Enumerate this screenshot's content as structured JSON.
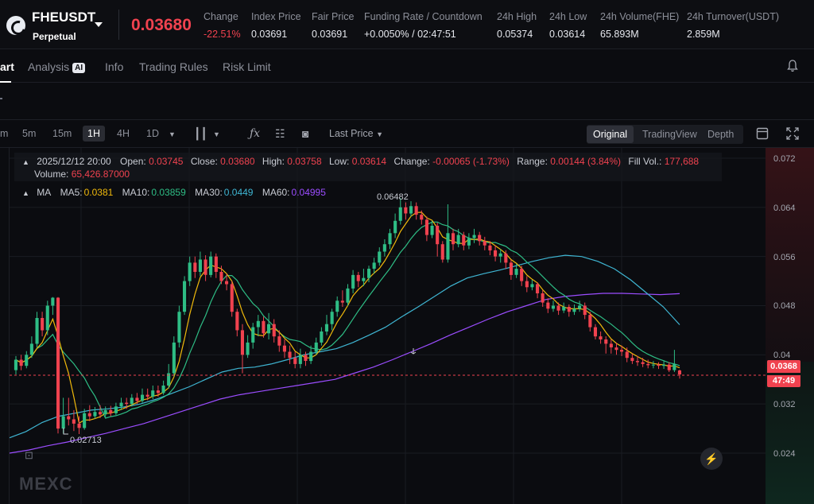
{
  "header": {
    "symbol": "FHEUSDT",
    "contract_type": "Perpetual",
    "last_price": "0.03680",
    "stats": [
      {
        "label": "Change",
        "value": "-22.51%",
        "negative": true
      },
      {
        "label": "Index Price",
        "value": "0.03691"
      },
      {
        "label": "Fair Price",
        "value": "0.03691"
      },
      {
        "label": "Funding Rate / Countdown",
        "value": "+0.0050% / 02:47:51"
      },
      {
        "label": "24h High",
        "value": "0.05374"
      },
      {
        "label": "24h Low",
        "value": "0.03614"
      },
      {
        "label": "24h Volume(FHE)",
        "value": "65.893M"
      },
      {
        "label": "24h Turnover(USDT)",
        "value": "2.859M"
      }
    ]
  },
  "tabs": [
    "art",
    "Analysis",
    "Info",
    "Trading Rules",
    "Risk Limit"
  ],
  "ai_badge": "AI",
  "toolbar": {
    "timeframes": [
      "m",
      "5m",
      "15m",
      "1H",
      "4H",
      "1D"
    ],
    "active_timeframe": "1H",
    "price_type": "Last Price",
    "views": [
      "Original",
      "TradingView",
      "Depth"
    ],
    "active_view": "Original"
  },
  "ohlc": {
    "time": "2025/12/12 20:00",
    "open_label": "Open:",
    "open": "0.03745",
    "close_label": "Close:",
    "close": "0.03680",
    "high_label": "High:",
    "high": "0.03758",
    "low_label": "Low:",
    "low": "0.03614",
    "change_label": "Change:",
    "change": "-0.00065 (-1.73%)",
    "range_label": "Range:",
    "range": "0.00144 (3.84%)",
    "fill_label": "Fill Vol.:",
    "fill": "177,688",
    "volume_label": "Volume:",
    "volume": "65,426.87000"
  },
  "ma": {
    "label": "MA",
    "items": [
      {
        "name": "MA5:",
        "value": "0.0381",
        "color": "#f0b90b"
      },
      {
        "name": "MA10:",
        "value": "0.03859",
        "color": "#2ebd85"
      },
      {
        "name": "MA30:",
        "value": "0.0449",
        "color": "#3fb6d3"
      },
      {
        "name": "MA60:",
        "value": "0.04995",
        "color": "#9b4dff"
      }
    ]
  },
  "chart_data": {
    "type": "candlestick",
    "price_axis": [
      "0.072",
      "0.064",
      "0.056",
      "0.048",
      "0.04",
      "0.032",
      "0.024"
    ],
    "ylim": [
      0.0205,
      0.0735
    ],
    "highest_label": "0.06482",
    "lowest_label": "0.02713",
    "current_price": "0.0368",
    "countdown": "47:49",
    "candles": [
      [
        0.0375,
        0.0392,
        0.0398,
        0.0368
      ],
      [
        0.0392,
        0.0382,
        0.04,
        0.0375
      ],
      [
        0.0382,
        0.04,
        0.0406,
        0.0378
      ],
      [
        0.04,
        0.0418,
        0.043,
        0.0395
      ],
      [
        0.0418,
        0.046,
        0.047,
        0.0412
      ],
      [
        0.046,
        0.044,
        0.047,
        0.043
      ],
      [
        0.044,
        0.048,
        0.0488,
        0.0432
      ],
      [
        0.048,
        0.0493,
        0.0494,
        0.0465
      ],
      [
        0.0493,
        0.028,
        0.0494,
        0.0272
      ],
      [
        0.028,
        0.03,
        0.033,
        0.0272
      ],
      [
        0.03,
        0.0295,
        0.033,
        0.0285
      ],
      [
        0.0295,
        0.0288,
        0.031,
        0.0276
      ],
      [
        0.0288,
        0.0281,
        0.03,
        0.0271
      ],
      [
        0.0281,
        0.0305,
        0.0312,
        0.0278
      ],
      [
        0.0305,
        0.03,
        0.0318,
        0.0292
      ],
      [
        0.03,
        0.0307,
        0.0315,
        0.0296
      ],
      [
        0.0307,
        0.0303,
        0.0318,
        0.0297
      ],
      [
        0.0303,
        0.031,
        0.0316,
        0.0299
      ],
      [
        0.031,
        0.0305,
        0.0317,
        0.03
      ],
      [
        0.0305,
        0.0316,
        0.0322,
        0.0302
      ],
      [
        0.0316,
        0.0322,
        0.033,
        0.031
      ],
      [
        0.0322,
        0.032,
        0.033,
        0.0312
      ],
      [
        0.032,
        0.033,
        0.0336,
        0.0316
      ],
      [
        0.033,
        0.0325,
        0.0338,
        0.032
      ],
      [
        0.0325,
        0.0335,
        0.0345,
        0.0322
      ],
      [
        0.0335,
        0.0332,
        0.0345,
        0.0326
      ],
      [
        0.0332,
        0.0342,
        0.035,
        0.0328
      ],
      [
        0.0342,
        0.0338,
        0.035,
        0.0332
      ],
      [
        0.0338,
        0.035,
        0.0358,
        0.0335
      ],
      [
        0.035,
        0.037,
        0.0385,
        0.0345
      ],
      [
        0.037,
        0.042,
        0.043,
        0.0365
      ],
      [
        0.042,
        0.047,
        0.048,
        0.0412
      ],
      [
        0.047,
        0.052,
        0.0528,
        0.0465
      ],
      [
        0.052,
        0.055,
        0.056,
        0.0512
      ],
      [
        0.055,
        0.0535,
        0.056,
        0.0525
      ],
      [
        0.0535,
        0.0555,
        0.0568,
        0.0528
      ],
      [
        0.0555,
        0.053,
        0.0562,
        0.052
      ],
      [
        0.053,
        0.056,
        0.0568,
        0.0526
      ],
      [
        0.056,
        0.0535,
        0.0565,
        0.0525
      ],
      [
        0.0535,
        0.052,
        0.0545,
        0.0515
      ],
      [
        0.052,
        0.0515,
        0.0532,
        0.0505
      ],
      [
        0.0515,
        0.047,
        0.052,
        0.0462
      ],
      [
        0.047,
        0.044,
        0.0475,
        0.043
      ],
      [
        0.044,
        0.04,
        0.045,
        0.037
      ],
      [
        0.04,
        0.042,
        0.0432,
        0.0395
      ],
      [
        0.042,
        0.0445,
        0.0452,
        0.041
      ],
      [
        0.0445,
        0.0455,
        0.0465,
        0.043
      ],
      [
        0.0455,
        0.0435,
        0.0462,
        0.0428
      ],
      [
        0.0435,
        0.045,
        0.0468,
        0.0425
      ],
      [
        0.045,
        0.043,
        0.0458,
        0.042
      ],
      [
        0.043,
        0.0415,
        0.044,
        0.0405
      ],
      [
        0.0415,
        0.0405,
        0.0425,
        0.0395
      ],
      [
        0.0405,
        0.0395,
        0.0415,
        0.0385
      ],
      [
        0.0395,
        0.0385,
        0.0405,
        0.0378
      ],
      [
        0.0385,
        0.04,
        0.041,
        0.0378
      ],
      [
        0.04,
        0.039,
        0.0405,
        0.0382
      ],
      [
        0.039,
        0.0405,
        0.0415,
        0.0385
      ],
      [
        0.0405,
        0.042,
        0.0428,
        0.04
      ],
      [
        0.042,
        0.0438,
        0.0445,
        0.0415
      ],
      [
        0.0438,
        0.045,
        0.0465,
        0.0432
      ],
      [
        0.045,
        0.047,
        0.0475,
        0.044
      ],
      [
        0.047,
        0.0488,
        0.0495,
        0.0462
      ],
      [
        0.0488,
        0.0485,
        0.0505,
        0.0478
      ],
      [
        0.0485,
        0.0508,
        0.0515,
        0.048
      ],
      [
        0.0508,
        0.053,
        0.0538,
        0.05
      ],
      [
        0.053,
        0.052,
        0.0535,
        0.051
      ],
      [
        0.052,
        0.0525,
        0.054,
        0.0512
      ],
      [
        0.0525,
        0.054,
        0.0545,
        0.0518
      ],
      [
        0.054,
        0.055,
        0.0558,
        0.0532
      ],
      [
        0.055,
        0.0568,
        0.0575,
        0.0545
      ],
      [
        0.0568,
        0.058,
        0.0588,
        0.056
      ],
      [
        0.058,
        0.0598,
        0.0605,
        0.0572
      ],
      [
        0.0598,
        0.0618,
        0.063,
        0.059
      ],
      [
        0.0618,
        0.064,
        0.0655,
        0.0612
      ],
      [
        0.064,
        0.063,
        0.0648,
        0.062
      ],
      [
        0.063,
        0.0642,
        0.065,
        0.0625
      ],
      [
        0.0642,
        0.0628,
        0.0648,
        0.062
      ],
      [
        0.0628,
        0.062,
        0.0635,
        0.0612
      ],
      [
        0.062,
        0.0595,
        0.0625,
        0.0585
      ],
      [
        0.0595,
        0.061,
        0.0618,
        0.059
      ],
      [
        0.061,
        0.058,
        0.0615,
        0.056
      ],
      [
        0.058,
        0.0555,
        0.0585,
        0.055
      ],
      [
        0.0555,
        0.0598,
        0.0645,
        0.055
      ],
      [
        0.0598,
        0.058,
        0.0605,
        0.057
      ],
      [
        0.058,
        0.0595,
        0.0605,
        0.0575
      ],
      [
        0.0595,
        0.0578,
        0.06,
        0.057
      ],
      [
        0.0578,
        0.059,
        0.0598,
        0.0572
      ],
      [
        0.059,
        0.0595,
        0.0605,
        0.0582
      ],
      [
        0.0595,
        0.0585,
        0.06,
        0.0578
      ],
      [
        0.0585,
        0.0578,
        0.0592,
        0.057
      ],
      [
        0.0578,
        0.057,
        0.0585,
        0.0562
      ],
      [
        0.057,
        0.056,
        0.0578,
        0.0552
      ],
      [
        0.056,
        0.0565,
        0.0572,
        0.055
      ],
      [
        0.0565,
        0.055,
        0.057,
        0.054
      ],
      [
        0.055,
        0.053,
        0.0555,
        0.0522
      ],
      [
        0.053,
        0.054,
        0.0548,
        0.0525
      ],
      [
        0.054,
        0.052,
        0.0545,
        0.0512
      ],
      [
        0.052,
        0.051,
        0.0528,
        0.0502
      ],
      [
        0.051,
        0.0515,
        0.0522,
        0.0505
      ],
      [
        0.0515,
        0.05,
        0.0518,
        0.0492
      ],
      [
        0.05,
        0.0485,
        0.0505,
        0.0478
      ],
      [
        0.0485,
        0.0475,
        0.0492,
        0.0468
      ],
      [
        0.0475,
        0.048,
        0.0488,
        0.047
      ],
      [
        0.048,
        0.0472,
        0.0485,
        0.0465
      ],
      [
        0.0472,
        0.0478,
        0.0485,
        0.0468
      ],
      [
        0.0478,
        0.047,
        0.0482,
        0.0462
      ],
      [
        0.047,
        0.0475,
        0.0482,
        0.0465
      ],
      [
        0.0475,
        0.048,
        0.0488,
        0.047
      ],
      [
        0.048,
        0.0465,
        0.0485,
        0.0458
      ],
      [
        0.0465,
        0.0445,
        0.047,
        0.0438
      ],
      [
        0.0445,
        0.043,
        0.045,
        0.0425
      ],
      [
        0.043,
        0.0425,
        0.0438,
        0.0418
      ],
      [
        0.0425,
        0.0418,
        0.043,
        0.0402
      ],
      [
        0.0418,
        0.0412,
        0.0425,
        0.0402
      ],
      [
        0.0412,
        0.0408,
        0.042,
        0.04
      ],
      [
        0.0408,
        0.0405,
        0.0415,
        0.0398
      ],
      [
        0.0405,
        0.0395,
        0.0412,
        0.0388
      ],
      [
        0.0395,
        0.039,
        0.0402,
        0.0385
      ],
      [
        0.039,
        0.0388,
        0.0398,
        0.0382
      ],
      [
        0.0388,
        0.0385,
        0.0395,
        0.038
      ],
      [
        0.0385,
        0.0383,
        0.0392,
        0.0378
      ],
      [
        0.0383,
        0.0384,
        0.039,
        0.0378
      ],
      [
        0.0384,
        0.0382,
        0.0388,
        0.0377
      ],
      [
        0.0382,
        0.0384,
        0.039,
        0.0377
      ],
      [
        0.0384,
        0.0375,
        0.0388,
        0.0372
      ],
      [
        0.0375,
        0.0385,
        0.0408,
        0.0372
      ],
      [
        0.03745,
        0.0368,
        0.03758,
        0.03614
      ]
    ],
    "ma_end_values": {
      "ma5": 0.0381,
      "ma10": 0.03859,
      "ma30": 0.0449,
      "ma60": 0.04995
    },
    "ma30_path": [
      0.0265,
      0.0275,
      0.029,
      0.03,
      0.0305,
      0.031,
      0.0312,
      0.0315,
      0.032,
      0.0328,
      0.0338,
      0.0348,
      0.036,
      0.0372,
      0.0378,
      0.038,
      0.0385,
      0.0392,
      0.04,
      0.0405,
      0.041,
      0.042,
      0.0432,
      0.0445,
      0.0462,
      0.0478,
      0.0495,
      0.0512,
      0.0525,
      0.0532,
      0.0538,
      0.0545,
      0.0552,
      0.0558,
      0.0562,
      0.056,
      0.0552,
      0.054,
      0.0522,
      0.05,
      0.0478,
      0.0449
    ],
    "ma60_path": [
      0.024,
      0.0245,
      0.0252,
      0.0258,
      0.0265,
      0.0272,
      0.028,
      0.0288,
      0.0298,
      0.0308,
      0.0318,
      0.0328,
      0.0335,
      0.034,
      0.0345,
      0.035,
      0.0355,
      0.036,
      0.037,
      0.038,
      0.0392,
      0.0405,
      0.0418,
      0.0432,
      0.0445,
      0.0458,
      0.047,
      0.048,
      0.049,
      0.0495,
      0.0498,
      0.05,
      0.05,
      0.0499,
      0.0498,
      0.04995
    ],
    "colors": {
      "up": "#2ebd85",
      "down": "#f0424f",
      "ma5": "#f0b90b",
      "ma10": "#2ebd85",
      "ma30": "#3fb6d3",
      "ma60": "#9b4dff"
    }
  },
  "watermark": "MEXC"
}
